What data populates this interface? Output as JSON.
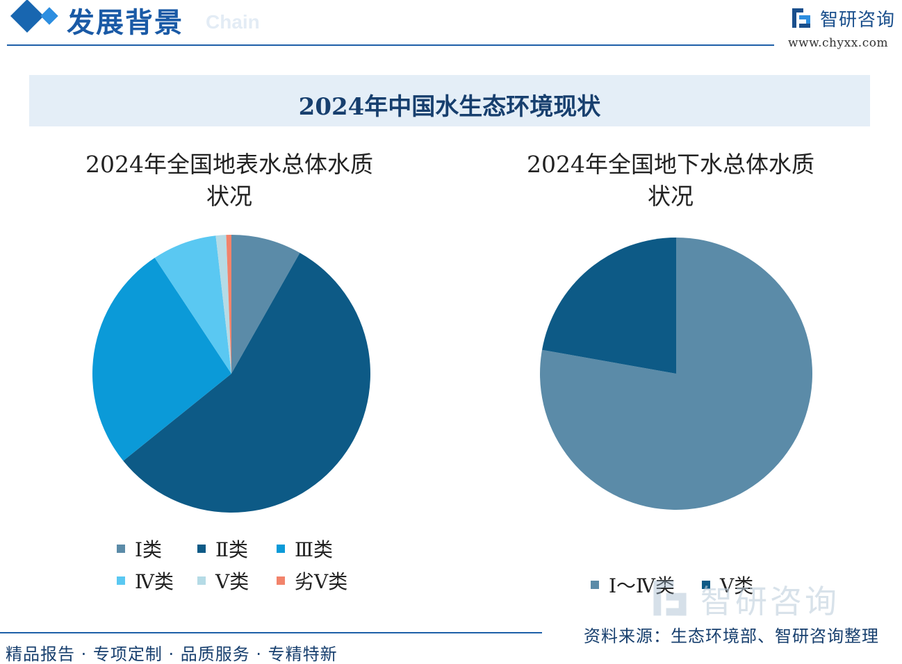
{
  "header": {
    "section_title": "发展背景",
    "ghost_text": "Chain",
    "brand_name": "智研咨询",
    "brand_url": "www.chyxx.com"
  },
  "main_title": "2024年中国水生态环境现状",
  "chart_data": [
    {
      "type": "pie",
      "title_line1": "2024年全国地表水总体水质",
      "title_line2": "状况",
      "categories": [
        "Ⅰ类",
        "Ⅱ类",
        "Ⅲ类",
        "Ⅳ类",
        "Ⅴ类",
        "劣Ⅴ类"
      ],
      "values": [
        8.2,
        56.0,
        26.5,
        7.5,
        1.2,
        0.6
      ],
      "colors": [
        "#5b8ba8",
        "#0d5a86",
        "#0b9ad8",
        "#5ac8f2",
        "#b5dbe6",
        "#f2836b"
      ],
      "legend_position": "bottom"
    },
    {
      "type": "pie",
      "title_line1": "2024年全国地下水总体水质",
      "title_line2": "状况",
      "categories": [
        "Ⅰ～Ⅳ类",
        "Ⅴ类"
      ],
      "values": [
        77.8,
        22.2
      ],
      "colors": [
        "#5b8ba8",
        "#0d5a86"
      ],
      "legend_position": "bottom"
    }
  ],
  "footer": {
    "slogan": "精品报告 · 专项定制 · 品质服务 · 专精特新",
    "source": "资料来源：生态环境部、智研咨询整理"
  },
  "watermark_text": "智研咨询"
}
